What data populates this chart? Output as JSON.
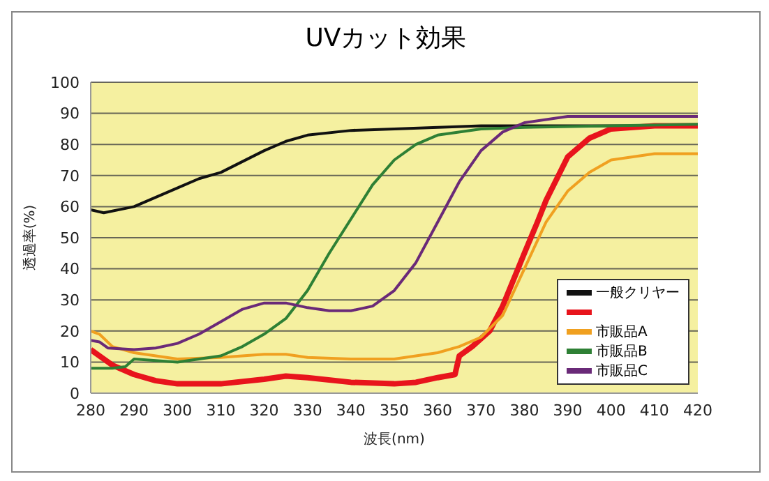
{
  "chart_data": {
    "type": "line",
    "title": "UVカット効果",
    "xlabel": "波長(nm)",
    "ylabel": "透過率(%)",
    "xlim": [
      280,
      420
    ],
    "xticks": [
      280,
      290,
      300,
      310,
      320,
      330,
      340,
      350,
      360,
      370,
      380,
      390,
      400,
      410,
      420
    ],
    "ylim": [
      0,
      100
    ],
    "yticks": [
      0,
      10,
      20,
      30,
      40,
      50,
      60,
      70,
      80,
      90,
      100
    ],
    "grid": "y",
    "legend": "bottom right",
    "marker": "none",
    "line_style": "solid",
    "series": [
      {
        "name": "一般クリヤー",
        "color": "#111111",
        "x": [
          280,
          283,
          290,
          300,
          305,
          310,
          320,
          325,
          330,
          340,
          350,
          360,
          370,
          380,
          390,
          400,
          420
        ],
        "values": [
          59,
          58,
          60,
          66,
          69,
          71,
          78,
          81,
          83,
          84.5,
          85,
          85.5,
          86,
          86,
          86,
          86,
          86
        ]
      },
      {
        "color": "#e8141c",
        "x": [
          280,
          285,
          290,
          295,
          300,
          310,
          320,
          325,
          330,
          340,
          350,
          355,
          360,
          364,
          365,
          368,
          372,
          375,
          380,
          383,
          385,
          390,
          395,
          400,
          410,
          420
        ],
        "values": [
          14,
          9,
          6,
          4,
          3,
          3,
          4.5,
          5.5,
          5,
          3.5,
          3,
          3.5,
          5,
          6,
          12,
          15,
          20,
          28,
          45,
          55,
          62,
          76,
          82,
          85,
          86,
          86
        ]
      },
      {
        "name": "市販品A",
        "color": "#f0a020",
        "x": [
          280,
          282,
          285,
          290,
          300,
          310,
          320,
          325,
          330,
          340,
          350,
          360,
          365,
          370,
          375,
          380,
          385,
          390,
          395,
          400,
          410,
          420
        ],
        "values": [
          20,
          19,
          15,
          13,
          11,
          11.5,
          12.5,
          12.5,
          11.5,
          11,
          11,
          13,
          15,
          18,
          25,
          40,
          55,
          65,
          71,
          75,
          77,
          77
        ]
      },
      {
        "name": "市販品B",
        "color": "#2e8035",
        "x": [
          280,
          285,
          288,
          290,
          300,
          305,
          310,
          315,
          320,
          325,
          330,
          335,
          340,
          345,
          350,
          355,
          360,
          370,
          380,
          400,
          420
        ],
        "values": [
          8,
          8,
          8.5,
          11,
          10,
          11,
          12,
          15,
          19,
          24,
          33,
          45,
          56,
          67,
          75,
          80,
          83,
          85,
          85.5,
          86,
          86.5
        ]
      },
      {
        "name": "市販品C",
        "color": "#6a2a78",
        "x": [
          280,
          282,
          284,
          290,
          295,
          300,
          305,
          310,
          315,
          320,
          325,
          330,
          335,
          340,
          345,
          350,
          355,
          360,
          365,
          370,
          375,
          380,
          390,
          400,
          420
        ],
        "values": [
          17,
          16.5,
          14.5,
          14,
          14.5,
          16,
          19,
          23,
          27,
          29,
          29,
          27.5,
          26.5,
          26.5,
          28,
          33,
          42,
          55,
          68,
          78,
          84,
          87,
          89,
          89,
          89
        ]
      }
    ]
  }
}
